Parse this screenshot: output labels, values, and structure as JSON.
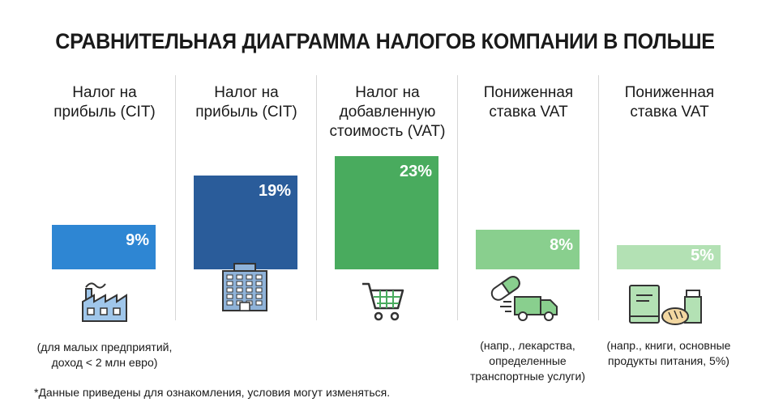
{
  "title": "СРАВНИТЕЛЬНАЯ ДИАГРАММА НАЛОГОВ КОМПАНИИ В ПОЛЬШЕ",
  "chart_data": {
    "type": "bar",
    "categories": [
      "Налог на\nприбыль (CIT)",
      "Налог на\nприбыль (CIT)",
      "Налог на\nдобавленную\nстоимость (VAT)",
      "Пониженная\nставка VAT",
      "Пониженная\nставка VAT"
    ],
    "values": [
      9,
      19,
      23,
      8,
      5
    ],
    "value_labels": [
      "9%",
      "19%",
      "23%",
      "8%",
      "5%"
    ],
    "notes": [
      "(для малых предприятий,\nдоход < 2 млн евро)",
      "",
      "",
      "(напр., лекарства,\nопределенные\nтранспортные услуги)",
      "(напр., книги, основные\nпродукты питания, 5%)"
    ],
    "colors": [
      "#2e86d3",
      "#2a5c9a",
      "#49ab5e",
      "#89cf8e",
      "#b3e1b4"
    ],
    "icons": [
      "factory-icon",
      "office-building-icon",
      "shopping-cart-icon",
      "pills-truck-icon",
      "book-bread-bottle-icon"
    ],
    "ylim": [
      0,
      23
    ],
    "grid": false,
    "legend": "none"
  },
  "footnote": "*Данные приведены для ознакомления, условия могут изменяться."
}
